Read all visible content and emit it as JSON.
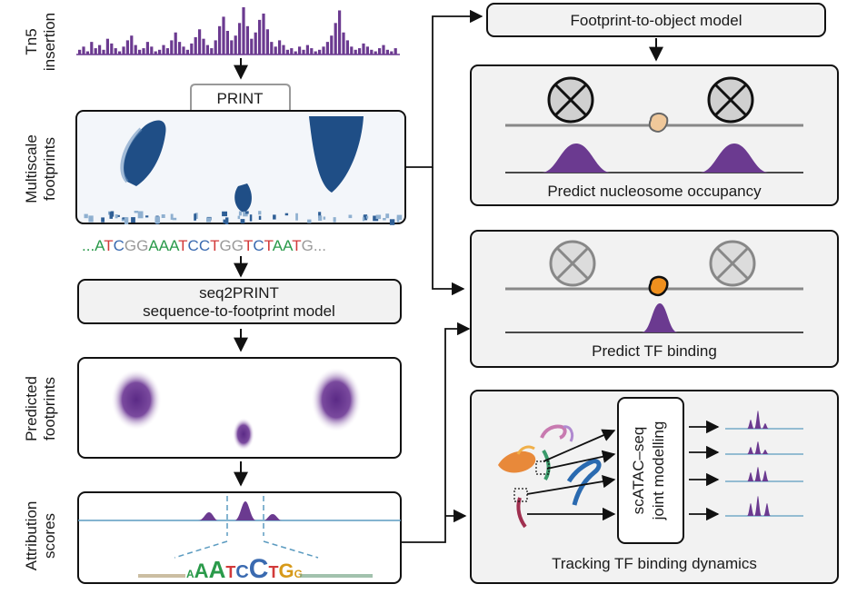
{
  "side_labels": {
    "tn5": [
      "Tn5",
      "insertion"
    ],
    "multiscale": [
      "Multiscale",
      "footprints"
    ],
    "predicted": [
      "Predicted",
      "footprints"
    ],
    "attribution": [
      "Attribution",
      "scores"
    ]
  },
  "print_tab": "PRINT",
  "sequence": {
    "prefix": "...",
    "bases": [
      "A",
      "T",
      "C",
      "G",
      "G",
      "A",
      "A",
      "A",
      "T",
      "C",
      "C",
      "T",
      "G",
      "G",
      "T",
      "C",
      "T",
      "A",
      "A",
      "T",
      "G"
    ],
    "suffix": "..."
  },
  "seq2print": {
    "line1": "seq2PRINT",
    "line2": "sequence-to-footprint model"
  },
  "footprint_to_object": "Footprint-to-object model",
  "nucleosome_caption": "Predict nucleosome occupancy",
  "tf_caption": "Predict TF binding",
  "scatac": {
    "line1": "scATAC–seq",
    "line2": "joint modelling"
  },
  "tracking_caption": "Tracking TF binding dynamics",
  "motif_letters": [
    "A",
    "A",
    "A",
    "T",
    "C",
    "C",
    "T",
    "G",
    "G"
  ],
  "tn5_bars": [
    3,
    5,
    2,
    8,
    4,
    6,
    3,
    10,
    7,
    4,
    2,
    5,
    9,
    12,
    6,
    3,
    4,
    8,
    5,
    2,
    3,
    6,
    4,
    9,
    14,
    8,
    5,
    3,
    7,
    11,
    16,
    10,
    6,
    4,
    9,
    18,
    24,
    15,
    9,
    12,
    20,
    30,
    18,
    10,
    14,
    22,
    26,
    16,
    8,
    5,
    9,
    6,
    3,
    4,
    2,
    5,
    3,
    6,
    4,
    2,
    3,
    5,
    8,
    12,
    20,
    28,
    14,
    9,
    5,
    3,
    4,
    7,
    5,
    3,
    2,
    4,
    6,
    3,
    2,
    4
  ]
}
